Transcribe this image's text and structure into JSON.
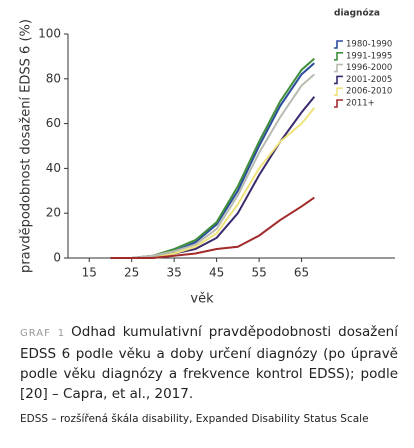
{
  "chart_data": {
    "type": "line",
    "y_label": "pravděpodobnost dosažení EDSS 6 (%)",
    "x_label": "věk",
    "legend_title": "diagnóza",
    "x": [
      20,
      25,
      30,
      35,
      40,
      45,
      50,
      55,
      60,
      65,
      68
    ],
    "series": [
      {
        "name": "1980-1990",
        "color": "#2b4c9c",
        "values": [
          0,
          0,
          1,
          3,
          7,
          15,
          30,
          50,
          68,
          82,
          87
        ]
      },
      {
        "name": "1991-1995",
        "color": "#3f8f3c",
        "values": [
          0,
          0,
          1,
          4,
          8,
          16,
          32,
          52,
          70,
          84,
          89
        ]
      },
      {
        "name": "1996-2000",
        "color": "#b8bcb0",
        "values": [
          0,
          0,
          1,
          3,
          6,
          13,
          28,
          47,
          63,
          77,
          82
        ]
      },
      {
        "name": "2001-2005",
        "color": "#3a2a6e",
        "values": [
          0,
          0,
          0,
          2,
          4,
          9,
          20,
          37,
          52,
          65,
          72
        ]
      },
      {
        "name": "2006-2010",
        "color": "#f0e27a",
        "values": [
          0,
          0,
          0,
          2,
          5,
          11,
          24,
          40,
          52,
          60,
          67
        ]
      },
      {
        "name": "2011+",
        "color": "#a32a2a",
        "values": [
          0,
          0,
          0,
          1,
          2,
          4,
          5,
          10,
          17,
          23,
          27
        ]
      }
    ],
    "xlim": [
      10,
      87
    ],
    "ylim": [
      0,
      100
    ],
    "xticks": [
      15,
      25,
      35,
      45,
      55,
      65
    ],
    "yticks": [
      0,
      20,
      40,
      60,
      80,
      100
    ],
    "grid": false
  },
  "caption": {
    "label": "GRAF 1",
    "text": "Odhad kumulativní pravděpodobnosti dosažení EDSS 6 podle věku a doby určení diagnózy (po úpravě podle věku diagnózy a frekvence kontrol EDSS); podle [20] – Capra, et al., 2017.",
    "footnote": "EDSS – rozšířená škála disability, Expanded Disability Status Scale"
  }
}
